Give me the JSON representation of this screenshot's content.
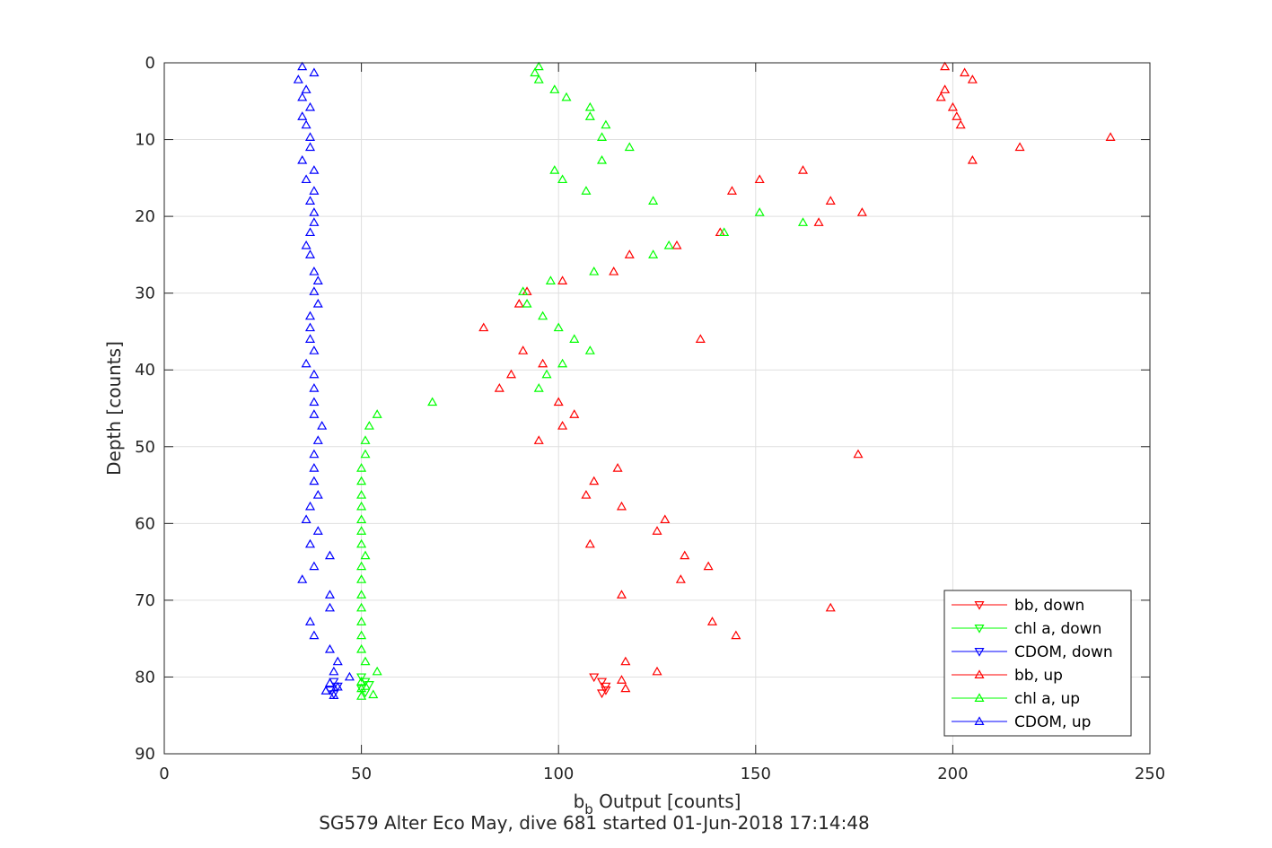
{
  "chart_data": {
    "type": "scatter",
    "xlabel": {
      "main": "b",
      "sub": "b",
      "rest": " Output [counts]"
    },
    "ylabel": "Depth [counts]",
    "caption": "SG579 Alter Eco May, dive 681 started 01-Jun-2018 17:14:48",
    "xlim": [
      0,
      250
    ],
    "ylim": [
      0,
      90
    ],
    "y_reversed": true,
    "grid": true,
    "legend_position": "lower-right",
    "x_ticks": [
      0,
      50,
      100,
      150,
      200,
      250
    ],
    "y_ticks": [
      0,
      10,
      20,
      30,
      40,
      50,
      60,
      70,
      80,
      90
    ],
    "series": [
      {
        "name": "bb, down",
        "color": "#ff0000",
        "marker": "triangle-down",
        "points": [
          [
            109,
            80
          ],
          [
            111,
            80.6
          ],
          [
            112,
            81.2
          ],
          [
            112,
            81.7
          ],
          [
            111,
            82.1
          ]
        ]
      },
      {
        "name": "chl a, down",
        "color": "#00ff00",
        "marker": "triangle-down",
        "points": [
          [
            50,
            80
          ],
          [
            51,
            80.6
          ],
          [
            52,
            81
          ],
          [
            50,
            81.5
          ],
          [
            51,
            82
          ]
        ]
      },
      {
        "name": "CDOM, down",
        "color": "#0000ff",
        "marker": "triangle-down",
        "points": [
          [
            43,
            80.6
          ],
          [
            44,
            81.2
          ],
          [
            42,
            81.7
          ],
          [
            43,
            82.2
          ]
        ]
      },
      {
        "name": "bb, up",
        "color": "#ff0000",
        "marker": "triangle-up",
        "points": [
          [
            198,
            0.5
          ],
          [
            203,
            1.3
          ],
          [
            205,
            2.2
          ],
          [
            198,
            3.5
          ],
          [
            197,
            4.5
          ],
          [
            200,
            5.8
          ],
          [
            201,
            7
          ],
          [
            202,
            8.1
          ],
          [
            240,
            9.7
          ],
          [
            217,
            11
          ],
          [
            205,
            12.7
          ],
          [
            162,
            14
          ],
          [
            151,
            15.2
          ],
          [
            144,
            16.7
          ],
          [
            169,
            18
          ],
          [
            177,
            19.5
          ],
          [
            166,
            20.8
          ],
          [
            141,
            22.1
          ],
          [
            130,
            23.8
          ],
          [
            118,
            25
          ],
          [
            114,
            27.2
          ],
          [
            101,
            28.4
          ],
          [
            92,
            29.8
          ],
          [
            90,
            31.4
          ],
          [
            81,
            34.5
          ],
          [
            136,
            36
          ],
          [
            91,
            37.5
          ],
          [
            96,
            39.2
          ],
          [
            88,
            40.6
          ],
          [
            85,
            42.4
          ],
          [
            100,
            44.2
          ],
          [
            104,
            45.8
          ],
          [
            101,
            47.3
          ],
          [
            95,
            49.2
          ],
          [
            176,
            51
          ],
          [
            115,
            52.8
          ],
          [
            109,
            54.5
          ],
          [
            107,
            56.3
          ],
          [
            116,
            57.8
          ],
          [
            127,
            59.5
          ],
          [
            125,
            61
          ],
          [
            108,
            62.7
          ],
          [
            132,
            64.2
          ],
          [
            138,
            65.6
          ],
          [
            131,
            67.3
          ],
          [
            116,
            69.3
          ],
          [
            169,
            71
          ],
          [
            139,
            72.8
          ],
          [
            145,
            74.6
          ],
          [
            117,
            78
          ],
          [
            125,
            79.3
          ],
          [
            116,
            80.4
          ],
          [
            117,
            81.5
          ]
        ]
      },
      {
        "name": "chl a, up",
        "color": "#00ff00",
        "marker": "triangle-up",
        "points": [
          [
            95,
            0.5
          ],
          [
            94,
            1.3
          ],
          [
            95,
            2.2
          ],
          [
            99,
            3.5
          ],
          [
            102,
            4.5
          ],
          [
            108,
            5.8
          ],
          [
            108,
            7
          ],
          [
            112,
            8.1
          ],
          [
            111,
            9.7
          ],
          [
            118,
            11
          ],
          [
            111,
            12.7
          ],
          [
            99,
            14
          ],
          [
            101,
            15.2
          ],
          [
            107,
            16.7
          ],
          [
            124,
            18
          ],
          [
            151,
            19.5
          ],
          [
            162,
            20.8
          ],
          [
            142,
            22.1
          ],
          [
            128,
            23.8
          ],
          [
            124,
            25
          ],
          [
            109,
            27.2
          ],
          [
            98,
            28.4
          ],
          [
            91,
            29.8
          ],
          [
            92,
            31.4
          ],
          [
            96,
            33
          ],
          [
            100,
            34.5
          ],
          [
            104,
            36
          ],
          [
            108,
            37.5
          ],
          [
            101,
            39.2
          ],
          [
            97,
            40.6
          ],
          [
            95,
            42.4
          ],
          [
            68,
            44.2
          ],
          [
            54,
            45.8
          ],
          [
            52,
            47.3
          ],
          [
            51,
            49.2
          ],
          [
            51,
            51
          ],
          [
            50,
            52.8
          ],
          [
            50,
            54.5
          ],
          [
            50,
            56.3
          ],
          [
            50,
            57.8
          ],
          [
            50,
            59.5
          ],
          [
            50,
            61
          ],
          [
            50,
            62.7
          ],
          [
            51,
            64.2
          ],
          [
            50,
            65.6
          ],
          [
            50,
            67.3
          ],
          [
            50,
            69.3
          ],
          [
            50,
            71
          ],
          [
            50,
            72.8
          ],
          [
            50,
            74.6
          ],
          [
            50,
            76.4
          ],
          [
            51,
            78
          ],
          [
            54,
            79.3
          ],
          [
            50,
            80.6
          ],
          [
            50,
            81.5
          ],
          [
            53,
            82.3
          ],
          [
            50,
            82.5
          ]
        ]
      },
      {
        "name": "CDOM, up",
        "color": "#0000ff",
        "marker": "triangle-up",
        "points": [
          [
            35,
            0.5
          ],
          [
            38,
            1.3
          ],
          [
            34,
            2.2
          ],
          [
            36,
            3.5
          ],
          [
            35,
            4.5
          ],
          [
            37,
            5.8
          ],
          [
            35,
            7
          ],
          [
            36,
            8.1
          ],
          [
            37,
            9.7
          ],
          [
            37,
            11
          ],
          [
            35,
            12.7
          ],
          [
            38,
            14
          ],
          [
            36,
            15.2
          ],
          [
            38,
            16.7
          ],
          [
            37,
            18
          ],
          [
            38,
            19.5
          ],
          [
            38,
            20.8
          ],
          [
            37,
            22.1
          ],
          [
            36,
            23.8
          ],
          [
            37,
            25
          ],
          [
            38,
            27.2
          ],
          [
            39,
            28.4
          ],
          [
            38,
            29.8
          ],
          [
            39,
            31.4
          ],
          [
            37,
            33
          ],
          [
            37,
            34.5
          ],
          [
            37,
            36
          ],
          [
            38,
            37.5
          ],
          [
            36,
            39.2
          ],
          [
            38,
            40.6
          ],
          [
            38,
            42.4
          ],
          [
            38,
            44.2
          ],
          [
            38,
            45.8
          ],
          [
            40,
            47.3
          ],
          [
            39,
            49.2
          ],
          [
            38,
            51
          ],
          [
            38,
            52.8
          ],
          [
            38,
            54.5
          ],
          [
            39,
            56.3
          ],
          [
            37,
            57.8
          ],
          [
            36,
            59.5
          ],
          [
            39,
            61
          ],
          [
            37,
            62.7
          ],
          [
            42,
            64.2
          ],
          [
            38,
            65.6
          ],
          [
            35,
            67.3
          ],
          [
            42,
            69.3
          ],
          [
            42,
            71
          ],
          [
            37,
            72.8
          ],
          [
            38,
            74.6
          ],
          [
            42,
            76.4
          ],
          [
            44,
            78
          ],
          [
            43,
            79.3
          ],
          [
            47,
            80
          ],
          [
            42,
            80.8
          ],
          [
            44,
            81.3
          ],
          [
            41,
            81.8
          ],
          [
            43,
            82.4
          ]
        ]
      }
    ]
  }
}
